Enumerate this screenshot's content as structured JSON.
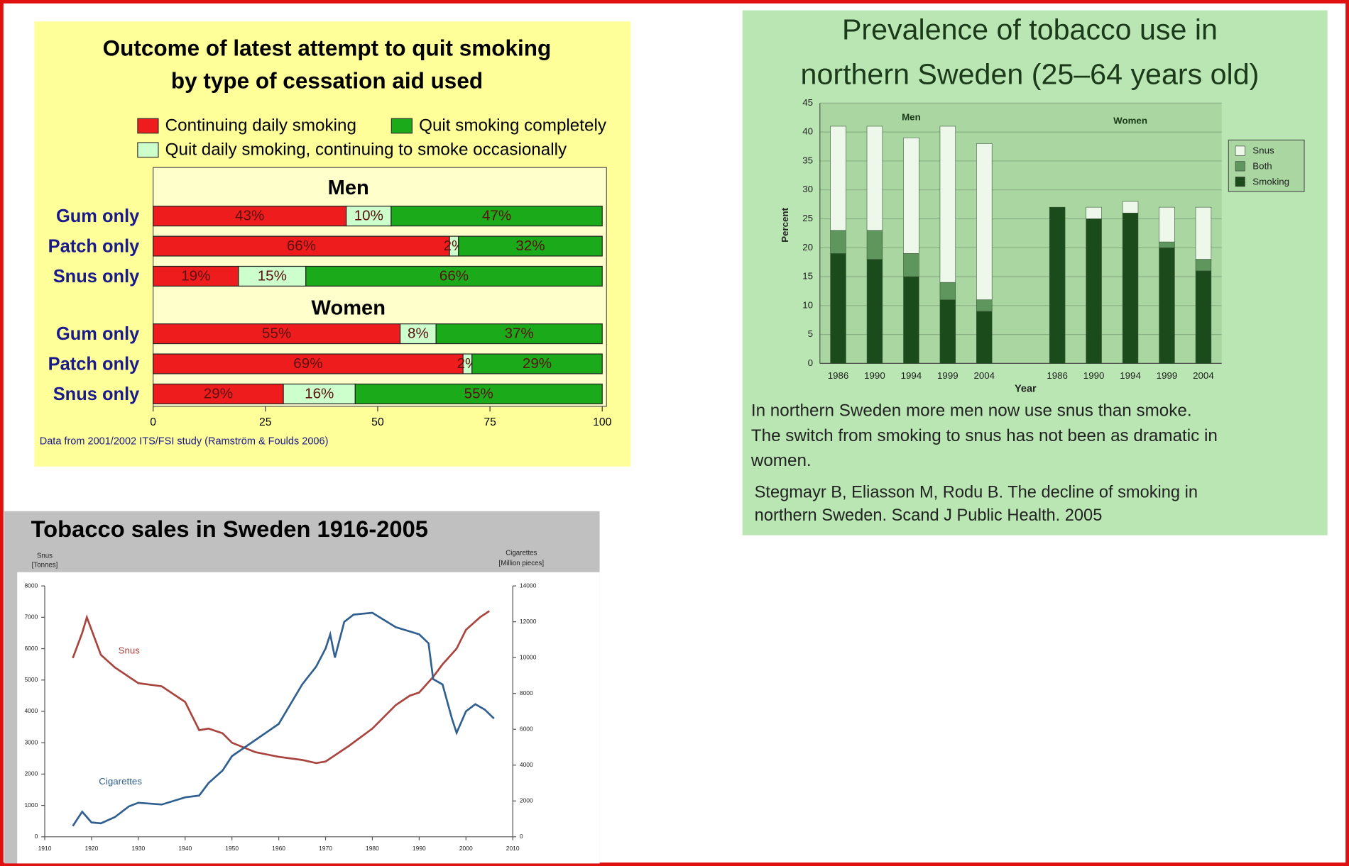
{
  "chart_data": [
    {
      "type": "bar",
      "orientation": "horizontal",
      "stacked": true,
      "title": [
        "Outcome of latest attempt to quit smoking",
        "by type of cessation aid used"
      ],
      "series": [
        {
          "name": "Continuing daily smoking",
          "color": "#ee1c1c"
        },
        {
          "name": "Quit daily  smoking, continuing to smoke occasionally",
          "color": "#ccffcc"
        },
        {
          "name": "Quit smoking completely",
          "color": "#1aaa1a"
        }
      ],
      "groups": [
        {
          "name": "Men",
          "categories": [
            "Gum only",
            "Patch only",
            "Snus only"
          ],
          "values": [
            [
              43,
              66,
              19
            ],
            [
              10,
              2,
              15
            ],
            [
              47,
              32,
              66
            ]
          ],
          "value_labels": [
            [
              "43%",
              "66%",
              "19%"
            ],
            [
              "10%",
              "2%",
              "15%"
            ],
            [
              "47%",
              "32%",
              "66%"
            ]
          ]
        },
        {
          "name": "Women",
          "categories": [
            "Gum only",
            "Patch only",
            "Snus only"
          ],
          "values": [
            [
              55,
              69,
              29
            ],
            [
              8,
              2,
              16
            ],
            [
              37,
              29,
              55
            ]
          ],
          "value_labels": [
            [
              "55%",
              "69%",
              "29%"
            ],
            [
              "8%",
              "2%",
              "16%"
            ],
            [
              "37%",
              "29%",
              "55%"
            ]
          ]
        }
      ],
      "xlim": [
        0,
        100
      ],
      "xticks": [
        0,
        25,
        50,
        75,
        100
      ],
      "note": "Data from  2001/2002  ITS/FSI study  (Ramström & Foulds 2006)"
    },
    {
      "type": "bar",
      "stacked": true,
      "title": [
        "Prevalence of tobacco use in",
        "northern Sweden (25–64 years old)"
      ],
      "series": [
        {
          "name": "Smoking",
          "color": "#1b4a1b"
        },
        {
          "name": "Both",
          "color": "#5e965e"
        },
        {
          "name": "Snus",
          "color": "#eef8ea"
        }
      ],
      "groups": [
        {
          "name": "Men",
          "categories": [
            "1986",
            "1990",
            "1994",
            "1999",
            "2004"
          ],
          "values": [
            [
              19,
              18,
              15,
              11,
              9
            ],
            [
              4,
              5,
              4,
              3,
              2
            ],
            [
              18,
              18,
              20,
              27,
              27
            ]
          ]
        },
        {
          "name": "Women",
          "categories": [
            "1986",
            "1990",
            "1994",
            "1999",
            "2004"
          ],
          "values": [
            [
              27,
              25,
              26,
              20,
              16
            ],
            [
              0,
              0,
              0,
              1,
              2
            ],
            [
              0,
              2,
              2,
              6,
              9
            ]
          ]
        }
      ],
      "ylim": [
        0,
        45
      ],
      "yticks": [
        0,
        5,
        10,
        15,
        20,
        25,
        30,
        35,
        40,
        45
      ],
      "xlabel": "Year",
      "ylabel": "Percent",
      "grid": true,
      "legend": "right",
      "notes": [
        "In northern Sweden more men now use snus than smoke.",
        "The switch from smoking to snus has not been as dramatic in",
        "women."
      ],
      "citation": [
        "Stegmayr B, Eliasson M, Rodu B.  The decline of smoking in",
        "northern Sweden.  Scand J Public Health. 2005"
      ]
    },
    {
      "type": "line",
      "title": "Tobacco sales in  Sweden 1916-2005",
      "ylabel": [
        "Snus",
        "[Tonnes]"
      ],
      "y2label": [
        "Cigarettes",
        "[Million pieces]"
      ],
      "xlim": [
        1910,
        2010
      ],
      "xticks": [
        1910,
        1920,
        1930,
        1940,
        1950,
        1960,
        1970,
        1980,
        1990,
        2000,
        2010
      ],
      "ylim": [
        0,
        8000
      ],
      "yticks": [
        0,
        1000,
        2000,
        3000,
        4000,
        5000,
        6000,
        7000,
        8000
      ],
      "y2lim": [
        0,
        14000
      ],
      "y2ticks": [
        0,
        2000,
        4000,
        6000,
        8000,
        10000,
        12000,
        14000
      ],
      "series": [
        {
          "name": "Snus",
          "color": "#a8433d",
          "x": [
            1916,
            1918,
            1919,
            1920,
            1922,
            1925,
            1930,
            1935,
            1940,
            1943,
            1945,
            1948,
            1950,
            1955,
            1960,
            1965,
            1968,
            1970,
            1975,
            1980,
            1985,
            1988,
            1990,
            1993,
            1995,
            1998,
            2000,
            2003,
            2005
          ],
          "values": [
            5700,
            6500,
            7000,
            6600,
            5800,
            5400,
            4900,
            4800,
            4300,
            3400,
            3450,
            3300,
            3000,
            2700,
            2550,
            2450,
            2350,
            2400,
            2900,
            3450,
            4200,
            4500,
            4600,
            5100,
            5500,
            6000,
            6600,
            7000,
            7200
          ]
        },
        {
          "name": "Cigarettes",
          "color": "#2f5f8f",
          "axis": "y2",
          "x": [
            1916,
            1918,
            1920,
            1922,
            1925,
            1928,
            1930,
            1935,
            1940,
            1943,
            1945,
            1948,
            1950,
            1955,
            1960,
            1965,
            1968,
            1970,
            1971,
            1972,
            1974,
            1976,
            1980,
            1985,
            1990,
            1992,
            1993,
            1995,
            1997,
            1998,
            1999,
            2000,
            2002,
            2004,
            2006
          ],
          "values": [
            600,
            1400,
            800,
            750,
            1100,
            1700,
            1900,
            1800,
            2200,
            2300,
            3000,
            3700,
            4500,
            5400,
            6300,
            8500,
            9500,
            10500,
            11300,
            10000,
            12000,
            12400,
            12500,
            11700,
            11300,
            10800,
            8800,
            8500,
            6600,
            5800,
            6400,
            7000,
            7400,
            7100,
            6600
          ]
        }
      ]
    }
  ]
}
